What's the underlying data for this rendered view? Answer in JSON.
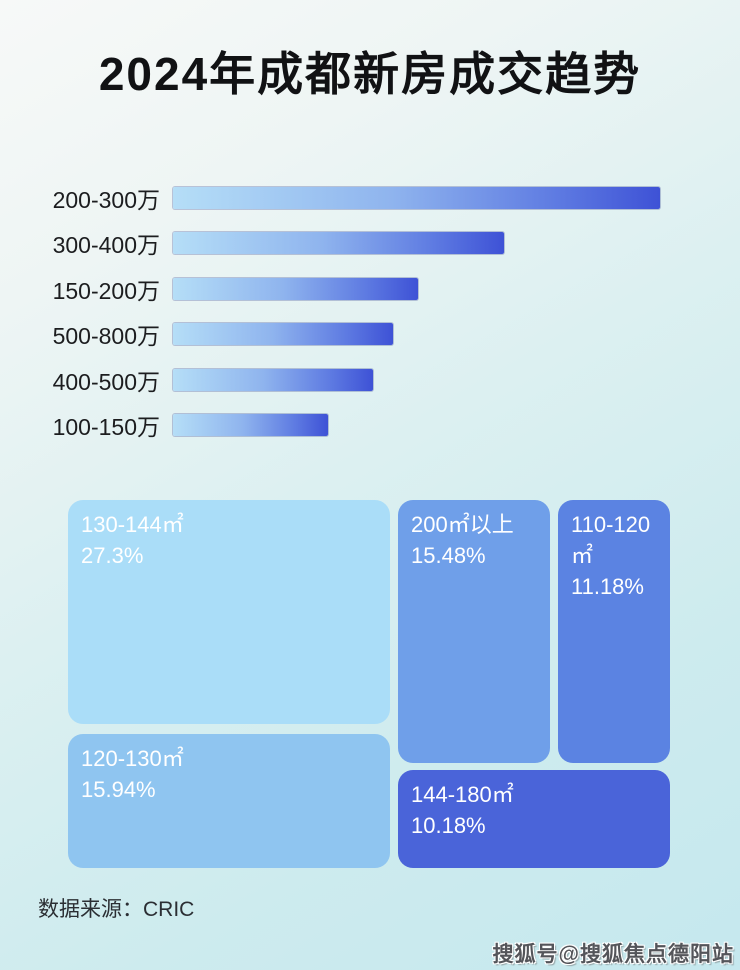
{
  "title": "2024年成都新房成交趋势",
  "source": {
    "label": "数据来源：CRIC"
  },
  "watermark": "搜狐号@搜狐焦点德阳站",
  "colors": {
    "bar_gradient_start": "#b5def7",
    "bar_gradient_end": "#3e52d6",
    "tile_130_144": "#aaddf8",
    "tile_120_130": "#8fc5f0",
    "tile_200_plus": "#6f9fe9",
    "tile_110_120": "#5b83e2",
    "tile_144_180": "#4a64d9",
    "background_top": "#f7f9f8",
    "background_bottom": "#c5e8ee",
    "title_color": "#111214",
    "tile_text_color": "#ffffff"
  },
  "chart_data": [
    {
      "type": "bar",
      "orientation": "horizontal",
      "title": "2024年成都新房成交趋势",
      "categories": [
        "200-300万",
        "300-400万",
        "150-200万",
        "500-800万",
        "400-500万",
        "100-150万"
      ],
      "values_relative_pct_of_max": [
        100,
        68,
        50.3,
        45.2,
        41.1,
        31.8
      ],
      "value_labels_shown": false,
      "note": "bar lengths estimated from pixels; no numeric value labels are shown in the image",
      "legend": "none",
      "grid": false
    },
    {
      "type": "treemap",
      "title": "",
      "items": [
        {
          "label": "130-144㎡",
          "value": 27.3,
          "display": "27.3%"
        },
        {
          "label": "200㎡以上",
          "value": 15.48,
          "display": "15.48%"
        },
        {
          "label": "110-120㎡",
          "value": 11.18,
          "display": "11.18%"
        },
        {
          "label": "120-130㎡",
          "value": 15.94,
          "display": "15.94%"
        },
        {
          "label": "144-180㎡",
          "value": 10.18,
          "display": "10.18%"
        }
      ]
    }
  ]
}
